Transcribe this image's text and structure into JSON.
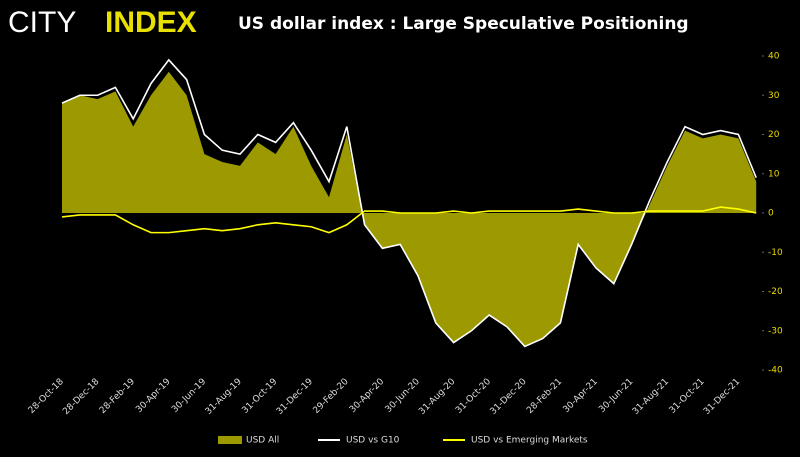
{
  "logo": {
    "left": "CITY",
    "right": "INDEX"
  },
  "chart_data": {
    "type": "area-lines",
    "title": "US dollar index : Large Speculative Positioning",
    "categories": [
      "28-Oct-18",
      null,
      "28-Dec-18",
      null,
      "28-Feb-19",
      null,
      "30-Apr-19",
      null,
      "30-Jun-19",
      null,
      "31-Aug-19",
      null,
      "31-Oct-19",
      null,
      "31-Dec-19",
      null,
      "29-Feb-20",
      null,
      "30-Apr-20",
      null,
      "30-Jun-20",
      null,
      "31-Aug-20",
      null,
      "31-Oct-20",
      null,
      "31-Dec-20",
      null,
      "28-Feb-21",
      null,
      "30-Apr-21",
      null,
      "30-Jun-21",
      null,
      "31-Aug-21",
      null,
      "31-Oct-21",
      null,
      "31-Dec-21",
      null
    ],
    "series": [
      {
        "name": "USD All",
        "color": "#9c9a00",
        "kind": "area",
        "values": [
          28,
          30,
          29,
          31,
          22,
          30,
          36,
          30,
          15,
          13,
          12,
          18,
          15,
          22,
          12,
          4,
          20,
          -3,
          -9,
          -8,
          -16,
          -28,
          -33,
          -30,
          -26,
          -29,
          -34,
          -32,
          -28,
          -8,
          -14,
          -18,
          -8,
          2,
          12,
          21,
          19,
          20,
          19,
          8
        ]
      },
      {
        "name": "USD vs G10",
        "color": "#ffffff",
        "kind": "line",
        "values": [
          28,
          30,
          30,
          32,
          24,
          33,
          39,
          34,
          20,
          16,
          15,
          20,
          18,
          23,
          16,
          8,
          22,
          -3,
          -9,
          -8,
          -16,
          -28,
          -33,
          -30,
          -26,
          -29,
          -34,
          -32,
          -28,
          -8,
          -14,
          -18,
          -8,
          3,
          13,
          22,
          20,
          21,
          20,
          9
        ]
      },
      {
        "name": "USD vs Emerging Markets",
        "color": "#ffff00",
        "kind": "line",
        "values": [
          -1,
          -0.5,
          -0.5,
          -0.5,
          -3,
          -5,
          -5,
          -4.5,
          -4,
          -4.5,
          -4,
          -3,
          -2.5,
          -3,
          -3.5,
          -5,
          -3,
          0.5,
          0.5,
          0,
          0,
          0,
          0.5,
          0,
          0.5,
          0.5,
          0.5,
          0.5,
          0.5,
          1,
          0.5,
          0,
          0,
          0.5,
          0.5,
          0.5,
          0.5,
          1.5,
          1,
          0
        ]
      }
    ],
    "ylim": [
      -40,
      40
    ],
    "yticks": [
      -40,
      -30,
      -20,
      -10,
      0,
      10,
      20,
      30,
      40
    ],
    "legend": "bottom"
  }
}
